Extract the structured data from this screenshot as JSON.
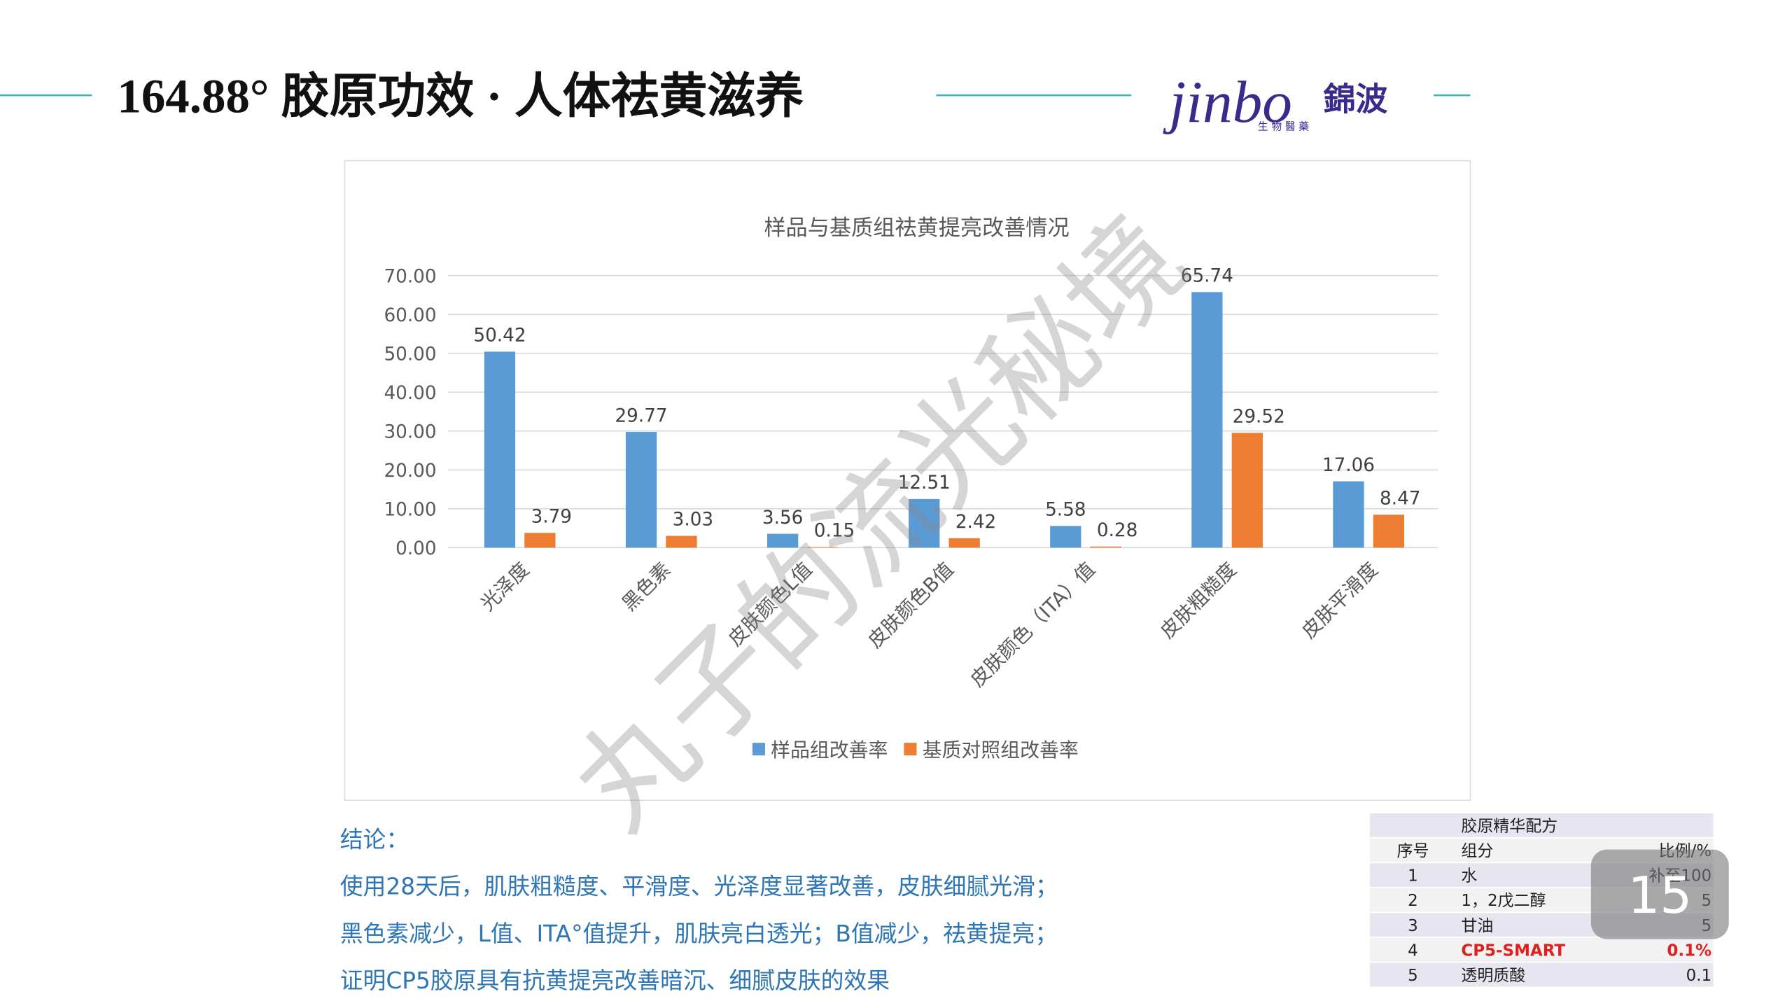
{
  "header": {
    "title": "164.88°  胶原功效 · 人体祛黄滋养",
    "logo": "jinbo",
    "logo_cn": "錦波",
    "logo_sub": "生 物 醫 藥"
  },
  "chart_data": {
    "type": "bar",
    "title": "样品与基质组祛黄提亮改善情况",
    "categories": [
      "光泽度",
      "黑色素",
      "皮肤颜色L值",
      "皮肤颜色B值",
      "皮肤颜色（ITA）值",
      "皮肤粗糙度",
      "皮肤平滑度"
    ],
    "series": [
      {
        "name": "样品组改善率",
        "color": "#5b9bd5",
        "values": [
          50.42,
          29.77,
          3.56,
          12.51,
          5.58,
          65.74,
          17.06
        ]
      },
      {
        "name": "基质对照组改善率",
        "color": "#ed7d31",
        "values": [
          3.79,
          3.03,
          0.15,
          2.42,
          0.28,
          29.52,
          8.47
        ]
      }
    ],
    "ylim": [
      0,
      70
    ],
    "yticks": [
      {
        "value": 0,
        "label": "0.00"
      },
      {
        "value": 10,
        "label": "10.00"
      },
      {
        "value": 20,
        "label": "20.00"
      },
      {
        "value": 30,
        "label": "30.00"
      },
      {
        "value": 40,
        "label": "40.00"
      },
      {
        "value": 50,
        "label": "50.00"
      },
      {
        "value": 60,
        "label": "60.00"
      },
      {
        "value": 70,
        "label": "70.00"
      }
    ],
    "grid": true,
    "legend": "bottom"
  },
  "watermark": "丸子的流光秘境",
  "conclusion": [
    "结论：",
    "使用28天后，肌肤粗糙度、平滑度、光泽度显著改善，皮肤细腻光滑；",
    "黑色素减少，L值、ITA°值提升，肌肤亮白透光；B值减少，祛黄提亮；",
    "证明CP5胶原具有抗黄提亮改善暗沉、细腻皮肤的效果"
  ],
  "table": {
    "rows": [
      [
        "",
        "胶原精华配方",
        ""
      ],
      [
        "序号",
        "组分",
        "比例/%"
      ],
      [
        "1",
        "水",
        "补至100"
      ],
      [
        "2",
        "1，2戊二醇",
        "5"
      ],
      [
        "3",
        "甘油",
        "5"
      ],
      [
        "4",
        "CP5-SMART",
        "0.1%"
      ],
      [
        "5",
        "透明质酸",
        "0.1"
      ]
    ]
  },
  "page_number": "15"
}
